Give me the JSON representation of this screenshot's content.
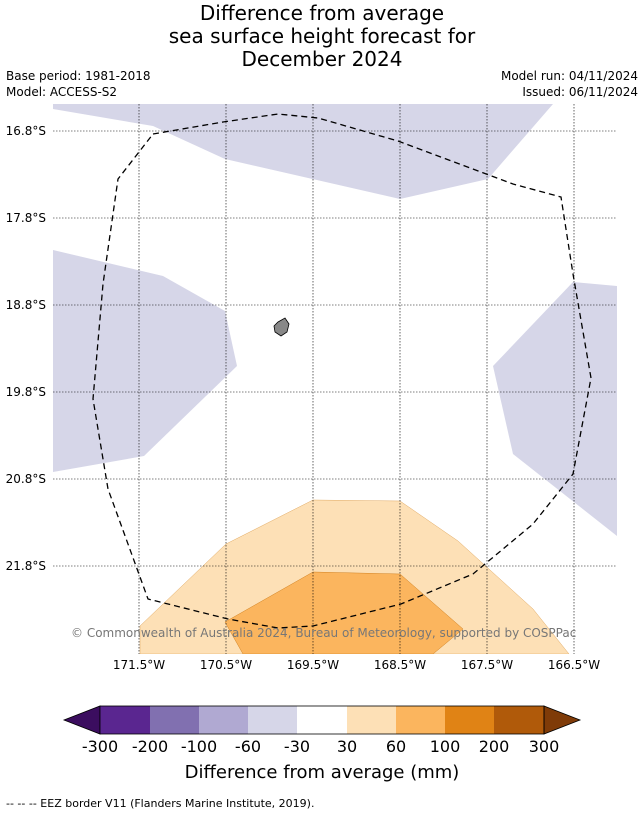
{
  "header": {
    "title_line1": "Difference from average",
    "title_line2": "sea surface height forecast for",
    "title_line3": "December 2024",
    "base_period": "Base period: 1981-2018",
    "model": "Model: ACCESS-S2",
    "model_run": "Model run: 04/11/2024",
    "issued": "Issued: 06/11/2024"
  },
  "map": {
    "lat_labels": [
      "16.8°S",
      "17.8°S",
      "18.8°S",
      "19.8°S",
      "20.8°S",
      "21.8°S"
    ],
    "lon_labels": [
      "171.5°W",
      "170.5°W",
      "169.5°W",
      "168.5°W",
      "167.5°W",
      "166.5°W"
    ],
    "copyright": "© Commonwealth of Australia 2024, Bureau of Meteorology, supported by COSPPac",
    "colors": {
      "neg_light": "#d6d6e8",
      "pos_light": "#fde0b6",
      "pos_mid": "#fbb55e",
      "land": "#888888"
    }
  },
  "colorbar": {
    "labels": [
      "-300",
      "-200",
      "-100",
      "-60",
      "-30",
      "30",
      "60",
      "100",
      "200",
      "300"
    ],
    "colors": [
      "#3b0d5f",
      "#5a2690",
      "#8170b0",
      "#b0a9d2",
      "#d6d6e8",
      "#ffffff",
      "#fde0b6",
      "#fbb55e",
      "#e08315",
      "#b05a0a",
      "#7f3b08"
    ],
    "title": "Difference from average (mm)"
  },
  "footer": {
    "legend": "--  --  -- EEZ border V11 (Flanders Marine Institute, 2019)."
  }
}
